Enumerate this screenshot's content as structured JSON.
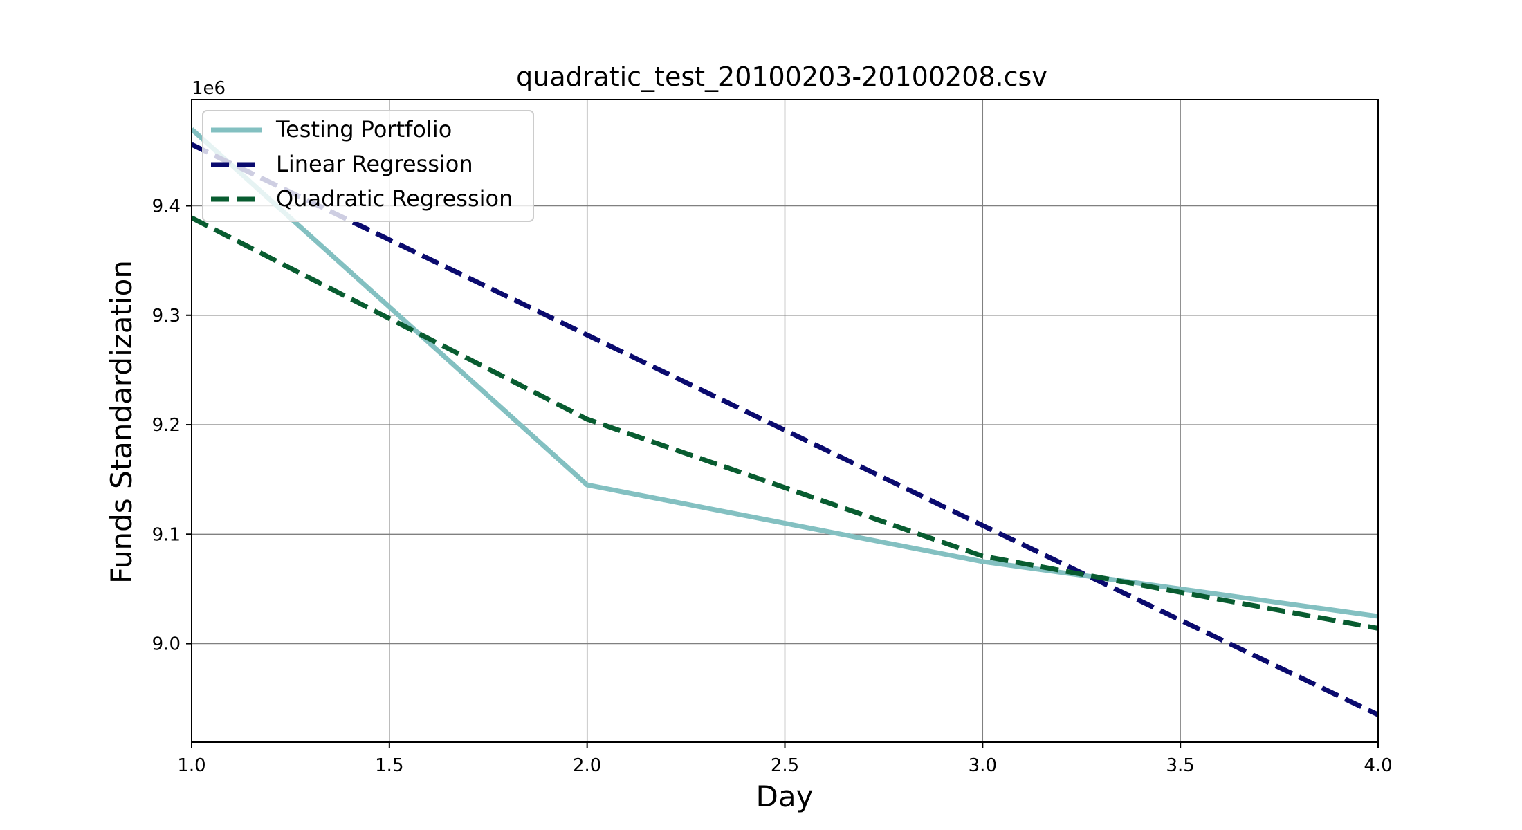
{
  "chart_data": {
    "type": "line",
    "title": "quadratic_test_20100203-20100208.csv",
    "xlabel": "Day",
    "ylabel": "Funds Standardization",
    "offset_label": "1e6",
    "xlim": [
      1.0,
      4.0
    ],
    "ylim": [
      8.91,
      9.497
    ],
    "y_scale_factor": 1000000,
    "grid": true,
    "legend_position": "upper-left",
    "x_ticks": [
      1.0,
      1.5,
      2.0,
      2.5,
      3.0,
      3.5,
      4.0
    ],
    "x_tick_labels": [
      "1.0",
      "1.5",
      "2.0",
      "2.5",
      "3.0",
      "3.5",
      "4.0"
    ],
    "y_ticks": [
      9.0,
      9.1,
      9.2,
      9.3,
      9.4
    ],
    "y_tick_labels": [
      "9.0",
      "9.1",
      "9.2",
      "9.3",
      "9.4"
    ],
    "series": [
      {
        "name": "Testing Portfolio",
        "color": "#83c0c1",
        "dash": "solid",
        "x": [
          1,
          2,
          3,
          4
        ],
        "y": [
          9.47,
          9.145,
          9.075,
          9.025
        ]
      },
      {
        "name": "Linear Regression",
        "color": "#0a0a6e",
        "dash": "dashed",
        "x": [
          1,
          2,
          3,
          4
        ],
        "y": [
          9.456,
          9.282,
          9.108,
          8.935
        ]
      },
      {
        "name": "Quadratic Regression",
        "color": "#085c30",
        "dash": "dashed",
        "x": [
          1,
          2,
          3,
          4
        ],
        "y": [
          9.389,
          9.205,
          9.08,
          9.014
        ]
      }
    ]
  }
}
